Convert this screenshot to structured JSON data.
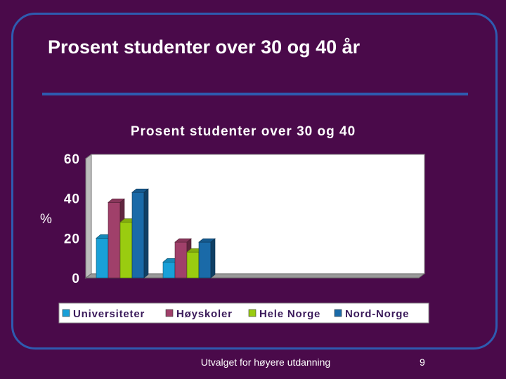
{
  "slide": {
    "title": "Prosent studenter over 30 og 40 år",
    "footer": "Utvalget for høyere utdanning",
    "page_number": "9"
  },
  "colors": {
    "background": "#4a0a4a",
    "accent": "#2e5bb0"
  },
  "chart_data": {
    "type": "bar",
    "title": "Prosent studenter over 30 og 40",
    "ylabel": "%",
    "xlabel": "",
    "ylim": [
      0,
      60
    ],
    "yticks": [
      "0",
      "20",
      "40",
      "60"
    ],
    "categories": [
      "",
      ""
    ],
    "series": [
      {
        "name": "Universiteter",
        "color": "#19a0d8",
        "values": [
          20,
          8
        ]
      },
      {
        "name": "Høyskoler",
        "color": "#a0406a",
        "values": [
          38,
          18
        ]
      },
      {
        "name": "Hele Norge",
        "color": "#9acc10",
        "values": [
          28,
          13
        ]
      },
      {
        "name": "Nord-Norge",
        "color": "#1a6aa8",
        "values": [
          43,
          18
        ]
      }
    ],
    "legend_position": "bottom",
    "grid": false
  }
}
